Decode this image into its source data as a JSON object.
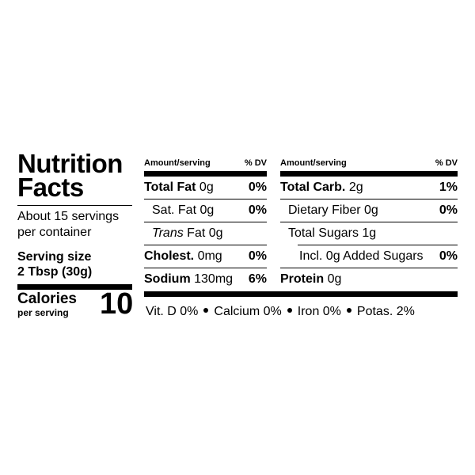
{
  "panel": {
    "title_line1": "Nutrition",
    "title_line2": "Facts",
    "servings_line1": "About 15 servings",
    "servings_line2": "per container",
    "serving_size_label": "Serving size",
    "serving_size_value": "2 Tbsp (30g)",
    "calories_label": "Calories",
    "calories_sub": "per serving",
    "calories_value": "10"
  },
  "left_table": {
    "header_amount": "Amount/serving",
    "header_dv": "% DV",
    "rows": [
      {
        "name": "Total Fat",
        "amount": " 0g",
        "dv": "0%"
      },
      {
        "name": "Sat. Fat 0g",
        "dv": "0%"
      },
      {
        "name_italic": "Trans",
        "name_rest": " Fat 0g",
        "dv": ""
      },
      {
        "name": "Cholest.",
        "amount": " 0mg",
        "dv": "0%"
      },
      {
        "name": "Sodium",
        "amount": " 130mg",
        "dv": "6%"
      }
    ]
  },
  "right_table": {
    "header_amount": "Amount/serving",
    "header_dv": "% DV",
    "rows": [
      {
        "name": "Total Carb.",
        "amount": " 2g",
        "dv": "1%"
      },
      {
        "name": "Dietary Fiber 0g",
        "dv": "0%"
      },
      {
        "name": "Total Sugars 1g",
        "dv": ""
      },
      {
        "name": "Incl. 0g Added Sugars",
        "dv": "0%"
      },
      {
        "name": "Protein",
        "amount": " 0g",
        "dv": ""
      }
    ]
  },
  "vitamins": [
    "Vit. D 0%",
    "Calcium 0%",
    "Iron 0%",
    "Potas. 2%"
  ]
}
